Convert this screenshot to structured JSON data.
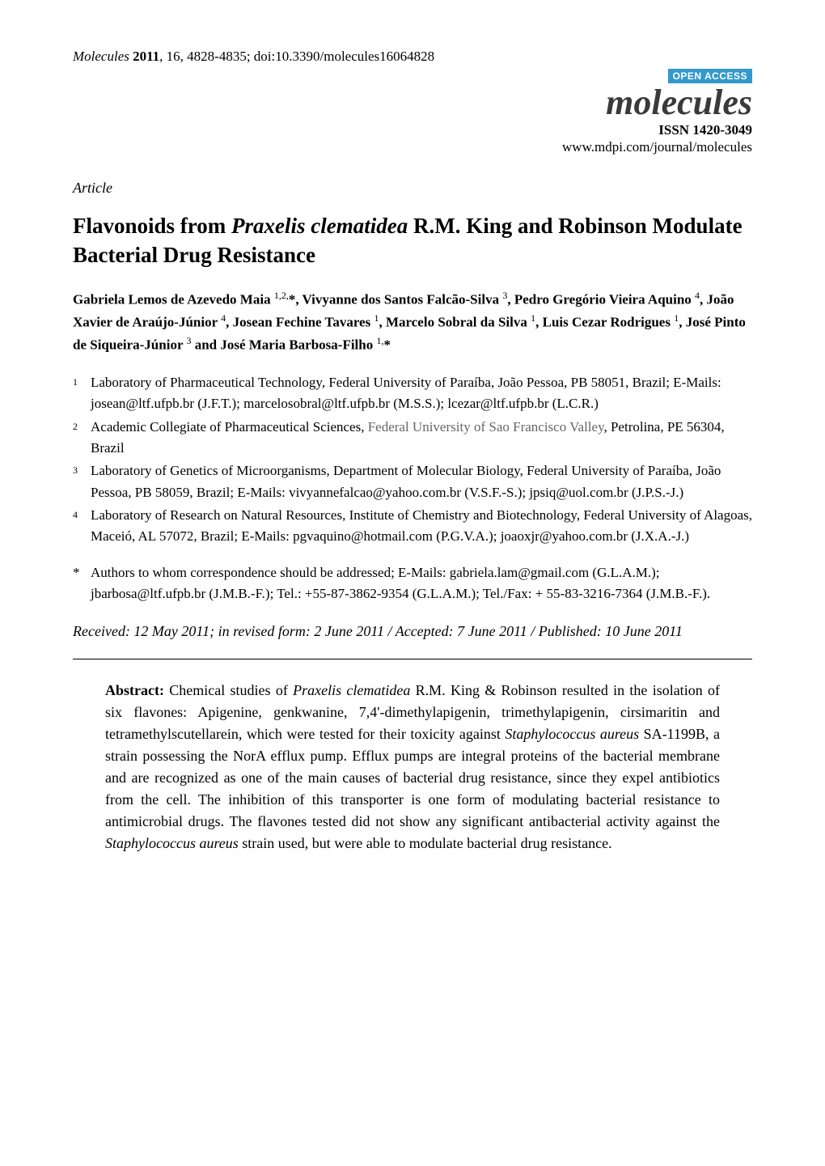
{
  "header": {
    "citation_journal": "Molecules",
    "citation_year": "2011",
    "citation_rest": ", 16, 4828-4835; doi:10.3390/molecules16064828"
  },
  "journal_block": {
    "open_access": "OPEN ACCESS",
    "journal_name": "molecules",
    "issn": "ISSN 1420-3049",
    "website": "www.mdpi.com/journal/molecules"
  },
  "article_type": "Article",
  "title_pre": "Flavonoids from ",
  "title_species": "Praxelis clematidea",
  "title_post": " R.M. King and Robinson Modulate Bacterial Drug Resistance",
  "authors_html": "Gabriela Lemos de Azevedo Maia <sup>1,2,</sup>*, Vivyanne dos Santos Falcão-Silva <sup>3</sup>, Pedro Gregório Vieira Aquino <sup>4</sup>, João Xavier de Araújo-Júnior <sup>4</sup>, Josean Fechine Tavares <sup>1</sup>, Marcelo Sobral da Silva <sup>1</sup>, Luis Cezar Rodrigues <sup>1</sup>, José Pinto de Siqueira-Júnior <sup>3</sup> and José Maria Barbosa-Filho <sup>1,</sup>*",
  "affiliations": [
    {
      "num": "1",
      "text": "Laboratory of Pharmaceutical Technology, Federal University of Paraíba, João Pessoa, PB 58051, Brazil; E-Mails: josean@ltf.ufpb.br (J.F.T.); marcelosobral@ltf.ufpb.br (M.S.S.); lcezar@ltf.ufpb.br (L.C.R.)"
    },
    {
      "num": "2",
      "text_pre": "Academic Collegiate of Pharmaceutical Sciences, ",
      "text_gray": "Federal University of Sao Francisco Valley",
      "text_post": ", Petrolina, PE 56304, Brazil"
    },
    {
      "num": "3",
      "text": "Laboratory of Genetics of Microorganisms, Department of Molecular Biology, Federal University of Paraíba, João Pessoa, PB 58059, Brazil; E-Mails: vivyannefalcao@yahoo.com.br (V.S.F.-S.); jpsiq@uol.com.br (J.P.S.-J.)"
    },
    {
      "num": "4",
      "text": "Laboratory of Research on Natural Resources, Institute of Chemistry and Biotechnology, Federal University of Alagoas, Maceió, AL 57072, Brazil; E-Mails: pgvaquino@hotmail.com (P.G.V.A.); joaoxjr@yahoo.com.br (J.X.A.-J.)"
    }
  ],
  "corresponding": {
    "marker": "*",
    "text": "Authors to whom correspondence should be addressed; E-Mails: gabriela.lam@gmail.com (G.L.A.M.); jbarbosa@ltf.ufpb.br (J.M.B.-F.); Tel.: +55-87-3862-9354 (G.L.A.M.); Tel./Fax: + 55-83-3216-7364 (J.M.B.-F.)."
  },
  "dates": "Received: 12 May 2011; in revised form: 2 June 2011 / Accepted: 7 June 2011 / Published: 10 June 2011",
  "abstract": {
    "label": "Abstract:",
    "pre": " Chemical studies of ",
    "species1": "Praxelis clematidea",
    "mid1": " R.M. King & Robinson resulted in the isolation of six flavones: Apigenine, genkwanine, 7,4'-dimethylapigenin, trimethylapigenin, cirsimaritin and tetramethylscutellarein, which were tested for their toxicity against ",
    "species2": "Staphylococcus aureus",
    "mid2": " SA-1199B, a strain possessing the NorA efflux pump. Efflux pumps are integral proteins of the bacterial membrane and are recognized as one of the main causes of bacterial drug resistance, since they expel antibiotics from the cell. The inhibition of this transporter is one form of modulating bacterial resistance to antimicrobial drugs. The flavones tested did not show any significant antibacterial activity against the ",
    "species3": "Staphylococcus aureus",
    "post": " strain used, but were able to modulate bacterial drug resistance."
  },
  "colors": {
    "open_access_bg": "#3399cc",
    "open_access_fg": "#ffffff",
    "journal_name_color": "#3a3a3a",
    "gray_text": "#666666",
    "text": "#000000",
    "background": "#ffffff",
    "separator": "#000000"
  },
  "typography": {
    "body_font": "Times New Roman",
    "citation_fontsize": 17,
    "journal_name_fontsize": 44,
    "issn_fontsize": 17,
    "title_fontsize": 27,
    "authors_fontsize": 17,
    "affil_fontsize": 17,
    "abstract_fontsize": 18
  }
}
